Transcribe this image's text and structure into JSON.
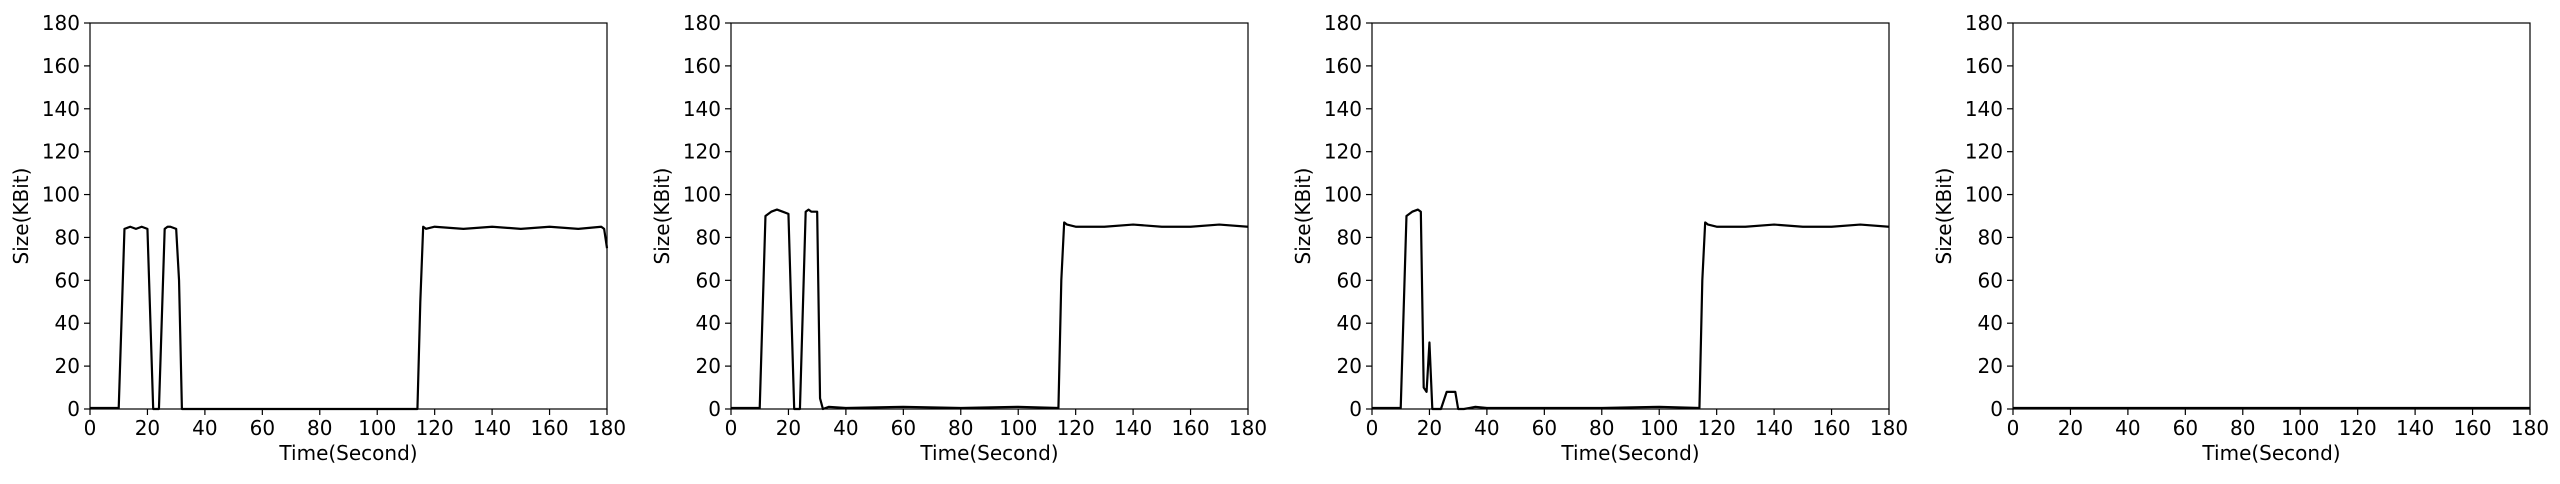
{
  "chart_data": [
    {
      "type": "line",
      "xlabel": "Time(Second)",
      "ylabel": "Size(KBit)",
      "xlim": [
        0,
        180
      ],
      "ylim": [
        0,
        180
      ],
      "xticks": [
        0,
        20,
        40,
        60,
        80,
        100,
        120,
        140,
        160,
        180
      ],
      "yticks": [
        0,
        20,
        40,
        60,
        80,
        100,
        120,
        140,
        160,
        180
      ],
      "grid": false,
      "series": [
        {
          "color": "#000000",
          "x": [
            0,
            10,
            12,
            14,
            16,
            18,
            20,
            22,
            24,
            26,
            27,
            28,
            30,
            31,
            32,
            34,
            40,
            60,
            80,
            100,
            114,
            115,
            116,
            117,
            120,
            130,
            140,
            150,
            160,
            170,
            178,
            179,
            180
          ],
          "y": [
            0.5,
            0.5,
            84,
            85,
            84,
            85,
            84,
            0,
            0,
            84,
            85,
            85,
            84,
            60,
            0,
            0,
            0,
            0,
            0,
            0,
            0,
            50,
            85,
            84,
            85,
            84,
            85,
            84,
            85,
            84,
            85,
            84,
            75
          ]
        }
      ]
    },
    {
      "type": "line",
      "xlabel": "Time(Second)",
      "ylabel": "Size(KBit)",
      "xlim": [
        0,
        180
      ],
      "ylim": [
        0,
        180
      ],
      "xticks": [
        0,
        20,
        40,
        60,
        80,
        100,
        120,
        140,
        160,
        180
      ],
      "yticks": [
        0,
        20,
        40,
        60,
        80,
        100,
        120,
        140,
        160,
        180
      ],
      "grid": false,
      "series": [
        {
          "color": "#000000",
          "x": [
            0,
            10,
            12,
            14,
            16,
            18,
            20,
            22,
            24,
            26,
            27,
            28,
            30,
            31,
            32,
            34,
            40,
            60,
            80,
            100,
            114,
            115,
            116,
            117,
            120,
            130,
            140,
            150,
            160,
            170,
            180
          ],
          "y": [
            0.5,
            0.5,
            90,
            92,
            93,
            92,
            91,
            0,
            0,
            92,
            93,
            92,
            92,
            5,
            0,
            1,
            0.5,
            1,
            0.5,
            1,
            0.5,
            60,
            87,
            86,
            85,
            85,
            86,
            85,
            85,
            86,
            85
          ]
        }
      ]
    },
    {
      "type": "line",
      "xlabel": "Time(Second)",
      "ylabel": "Size(KBit)",
      "xlim": [
        0,
        180
      ],
      "ylim": [
        0,
        180
      ],
      "xticks": [
        0,
        20,
        40,
        60,
        80,
        100,
        120,
        140,
        160,
        180
      ],
      "yticks": [
        0,
        20,
        40,
        60,
        80,
        100,
        120,
        140,
        160,
        180
      ],
      "grid": false,
      "series": [
        {
          "color": "#000000",
          "x": [
            0,
            10,
            12,
            14,
            16,
            17,
            18,
            19,
            20,
            21,
            22,
            24,
            26,
            28,
            29,
            30,
            32,
            34,
            36,
            40,
            60,
            80,
            100,
            114,
            115,
            116,
            117,
            120,
            130,
            140,
            150,
            160,
            170,
            180
          ],
          "y": [
            0.5,
            0.5,
            90,
            92,
            93,
            92,
            10,
            8,
            31,
            0,
            0,
            0,
            8,
            8,
            8,
            0,
            0,
            0.5,
            1,
            0.5,
            0.5,
            0.5,
            1,
            0.5,
            60,
            87,
            86,
            85,
            85,
            86,
            85,
            85,
            86,
            85
          ]
        }
      ]
    },
    {
      "type": "line",
      "xlabel": "Time(Second)",
      "ylabel": "Size(KBit)",
      "xlim": [
        0,
        180
      ],
      "ylim": [
        0,
        180
      ],
      "xticks": [
        0,
        20,
        40,
        60,
        80,
        100,
        120,
        140,
        160,
        180
      ],
      "yticks": [
        0,
        20,
        40,
        60,
        80,
        100,
        120,
        140,
        160,
        180
      ],
      "grid": false,
      "series": [
        {
          "color": "#000000",
          "x": [
            0,
            180
          ],
          "y": [
            0.5,
            0.5
          ]
        }
      ]
    }
  ]
}
